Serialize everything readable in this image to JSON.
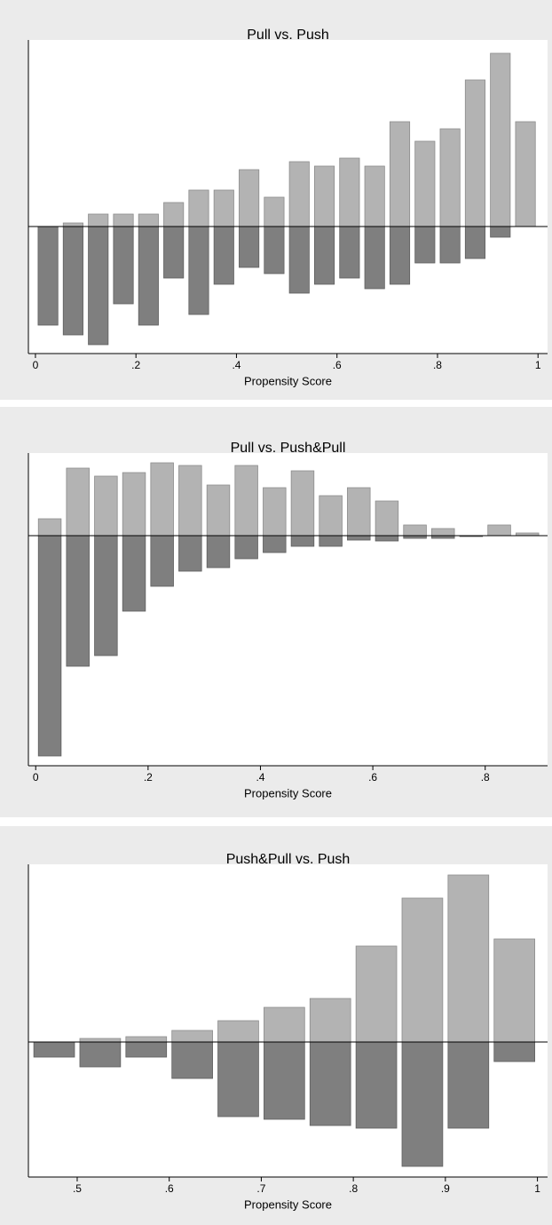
{
  "chart_data": [
    {
      "type": "histogram",
      "title": "Pull vs. Push",
      "x_label": "Propensity Score",
      "bins": [
        0,
        0.05,
        0.1,
        0.15,
        0.2,
        0.25,
        0.3,
        0.35,
        0.4,
        0.45,
        0.5,
        0.55,
        0.6,
        0.65,
        0.7,
        0.75,
        0.8,
        0.85,
        0.9,
        0.95,
        1
      ],
      "series": [
        {
          "color": "#b3b3b3",
          "values": [
            0,
            4,
            14,
            14,
            14,
            27,
            41,
            41,
            64,
            33,
            73,
            68,
            77,
            68,
            118,
            96,
            110,
            165,
            195,
            118
          ]
        },
        {
          "color": "#7f7f7f",
          "values": [
            -111,
            -122,
            -133,
            -87,
            -111,
            -58,
            -99,
            -65,
            -46,
            -53,
            -75,
            -65,
            -58,
            -70,
            -65,
            -41,
            -41,
            -36,
            -12,
            0
          ]
        }
      ],
      "xlim": [
        -0.014,
        1.019
      ],
      "xticks": [
        0,
        {
          "value": 0.2,
          "label": ".2"
        },
        {
          "value": 0.4,
          "label": ".4"
        },
        {
          "value": 0.6,
          "label": ".6"
        },
        {
          "value": 0.8,
          "label": ".8"
        },
        1
      ],
      "ylim": [
        -143,
        210
      ]
    },
    {
      "type": "histogram",
      "title": "Pull vs. Push&Pull",
      "x_label": "Propensity Score",
      "bins": [
        0,
        0.05,
        0.1,
        0.15,
        0.2,
        0.25,
        0.3,
        0.35,
        0.4,
        0.45,
        0.5,
        0.55,
        0.6,
        0.65,
        0.7,
        0.75,
        0.8,
        0.85,
        0.9
      ],
      "series": [
        {
          "color": "#b3b3b3",
          "values": [
            19,
            76,
            67,
            71,
            82,
            79,
            57,
            79,
            54,
            73,
            45,
            54,
            39,
            12,
            8,
            0,
            12,
            3
          ]
        },
        {
          "color": "#7f7f7f",
          "values": [
            -248,
            -147,
            -135,
            -85,
            -57,
            -40,
            -36,
            -26,
            -19,
            -12,
            -12,
            -5,
            -6,
            -3,
            -3,
            -1,
            0,
            0
          ]
        }
      ],
      "xlim": [
        -0.013,
        0.911
      ],
      "xticks": [
        0,
        {
          "value": 0.2,
          "label": ".2"
        },
        {
          "value": 0.4,
          "label": ".4"
        },
        {
          "value": 0.6,
          "label": ".6"
        },
        {
          "value": 0.8,
          "label": ".8"
        }
      ],
      "ylim": [
        -259,
        93
      ]
    },
    {
      "type": "histogram",
      "title": "Push&Pull vs. Push",
      "x_label": "Propensity Score",
      "bins": [
        0.45,
        0.5,
        0.55,
        0.6,
        0.65,
        0.7,
        0.75,
        0.8,
        0.85,
        0.9,
        0.95,
        1
      ],
      "series": [
        {
          "color": "#b3b3b3",
          "values": [
            0,
            4,
            6,
            13,
            24,
            39,
            49,
            108,
            162,
            188,
            116
          ]
        },
        {
          "color": "#7f7f7f",
          "values": [
            -17,
            -28,
            -17,
            -41,
            -84,
            -87,
            -94,
            -97,
            -140,
            -97,
            -22
          ]
        }
      ],
      "xlim": [
        0.447,
        1.011
      ],
      "xticks": [
        {
          "value": 0.5,
          "label": ".5"
        },
        {
          "value": 0.6,
          "label": ".6"
        },
        {
          "value": 0.7,
          "label": ".7"
        },
        {
          "value": 0.8,
          "label": ".8"
        },
        {
          "value": 0.9,
          "label": ".9"
        },
        1
      ],
      "ylim": [
        -152,
        200
      ]
    }
  ]
}
